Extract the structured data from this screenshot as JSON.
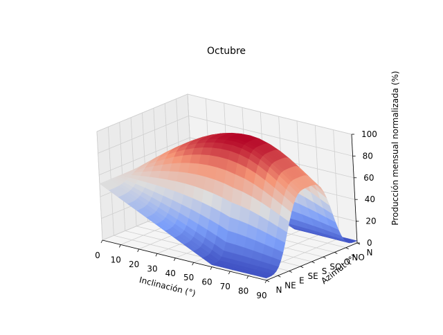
{
  "chart_data": {
    "type": "surface",
    "title": "Octubre",
    "xlabel": "Inclinación (°)",
    "ylabel": "Azimut (°)",
    "zlabel": "Producción mensual normalizada (%)",
    "x_ticks": [
      0,
      10,
      20,
      30,
      40,
      50,
      60,
      70,
      80,
      90
    ],
    "y_ticks": [
      "N",
      "NE",
      "E",
      "SE",
      "S",
      "SO",
      "O",
      "NO",
      "N"
    ],
    "z_ticks": [
      0,
      20,
      40,
      60,
      80,
      100
    ],
    "xlim": [
      0,
      90
    ],
    "ylim": [
      0,
      360
    ],
    "zlim": [
      0,
      100
    ],
    "grid": true,
    "colormap": "coolwarm",
    "peak": {
      "inclination": 55,
      "azimuth": 180,
      "value": 100
    },
    "values_at_zero_inclination": 52,
    "min_value": 2
  }
}
